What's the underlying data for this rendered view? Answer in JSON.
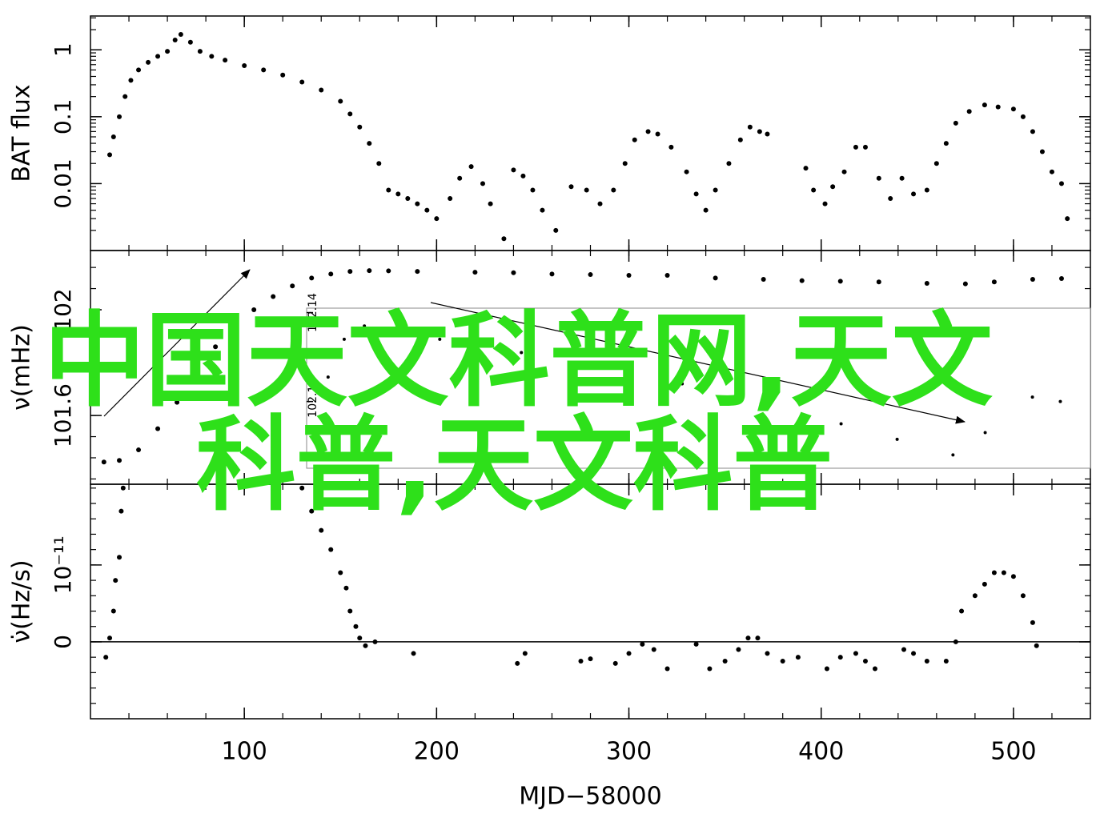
{
  "chart_data": [
    {
      "type": "scatter",
      "ylabel": "BAT flux",
      "yscale": "log",
      "ylim": [
        0.001,
        3.2
      ],
      "yticks": [
        0.01,
        0.1,
        1
      ],
      "color": "#000000",
      "x": [
        30,
        32,
        35,
        38,
        41,
        45,
        50,
        55,
        60,
        64,
        67,
        72,
        77,
        83,
        90,
        100,
        110,
        120,
        130,
        140,
        150,
        155,
        160,
        165,
        170,
        175,
        180,
        185,
        190,
        195,
        200,
        207,
        212,
        218,
        224,
        228,
        235,
        240,
        245,
        250,
        255,
        262,
        270,
        278,
        285,
        292,
        298,
        303,
        310,
        315,
        322,
        330,
        335,
        340,
        345,
        352,
        358,
        363,
        368,
        372,
        392,
        396,
        402,
        406,
        412,
        418,
        423,
        430,
        436,
        442,
        448,
        455,
        460,
        465,
        470,
        477,
        485,
        492,
        500,
        505,
        510,
        515,
        520,
        525,
        528
      ],
      "values": [
        0.027,
        0.05,
        0.1,
        0.2,
        0.35,
        0.5,
        0.65,
        0.8,
        0.95,
        1.4,
        1.7,
        1.3,
        0.95,
        0.8,
        0.7,
        0.58,
        0.5,
        0.42,
        0.33,
        0.25,
        0.17,
        0.11,
        0.07,
        0.04,
        0.02,
        0.008,
        0.007,
        0.006,
        0.005,
        0.004,
        0.003,
        0.006,
        0.012,
        0.018,
        0.01,
        0.005,
        0.0015,
        0.016,
        0.013,
        0.008,
        0.004,
        0.002,
        0.009,
        0.008,
        0.005,
        0.008,
        0.02,
        0.045,
        0.06,
        0.055,
        0.035,
        0.015,
        0.007,
        0.004,
        0.008,
        0.02,
        0.045,
        0.07,
        0.06,
        0.055,
        0.017,
        0.008,
        0.005,
        0.009,
        0.015,
        0.035,
        0.035,
        0.012,
        0.006,
        0.012,
        0.007,
        0.008,
        0.02,
        0.04,
        0.08,
        0.12,
        0.15,
        0.14,
        0.13,
        0.1,
        0.06,
        0.03,
        0.015,
        0.01,
        0.003
      ]
    },
    {
      "type": "scatter",
      "ylabel": "ν(mHz)",
      "ylim": [
        101.34,
        102.224
      ],
      "yticks": [
        101.6,
        102
      ],
      "color": "#000000",
      "x": [
        27,
        35,
        45,
        55,
        65,
        75,
        85,
        95,
        105,
        115,
        125,
        135,
        145,
        155,
        165,
        175,
        190,
        220,
        240,
        260,
        280,
        300,
        320,
        345,
        370,
        390,
        410,
        430,
        455,
        475,
        490,
        510,
        525
      ],
      "values": [
        101.424,
        101.43,
        101.47,
        101.55,
        101.65,
        101.76,
        101.86,
        101.94,
        102.0,
        102.05,
        102.09,
        102.12,
        102.135,
        102.145,
        102.148,
        102.147,
        102.145,
        102.142,
        102.14,
        102.135,
        102.133,
        102.13,
        102.13,
        102.12,
        102.115,
        102.11,
        102.108,
        102.105,
        102.1,
        102.098,
        102.105,
        102.115,
        102.118
      ]
    },
    {
      "type": "scatter",
      "ylabel": "ν̇(Hz/s)",
      "xlabel": "MJD−58000",
      "xlim": [
        20,
        540
      ],
      "xticks": [
        100,
        200,
        300,
        400,
        500
      ],
      "ylim": [
        -1e-11,
        2.05e-11
      ],
      "yticks": [
        0,
        {
          "value": 1e-11,
          "label": "10⁻¹¹"
        }
      ],
      "zero_line": true,
      "color": "#000000",
      "x": [
        28,
        30,
        32,
        33,
        35,
        36,
        37,
        130,
        135,
        140,
        145,
        150,
        153,
        155,
        158,
        160,
        163,
        168,
        188,
        242,
        246,
        275,
        280,
        293,
        300,
        307,
        313,
        320,
        335,
        342,
        350,
        357,
        362,
        367,
        372,
        380,
        388,
        403,
        410,
        418,
        423,
        428,
        443,
        448,
        455,
        465,
        470,
        473,
        480,
        485,
        490,
        495,
        500,
        505,
        510,
        512
      ],
      "values": [
        -2e-12,
        5e-13,
        4e-12,
        8e-12,
        1.1e-11,
        1.7e-11,
        2e-11,
        2e-11,
        1.7e-11,
        1.45e-11,
        1.2e-11,
        9e-12,
        7e-12,
        4e-12,
        2e-12,
        5e-13,
        -5e-13,
        0,
        -1.5e-12,
        -2.8e-12,
        -1.5e-12,
        -2.5e-12,
        -2.2e-12,
        -2.8e-12,
        -1.5e-12,
        -3e-13,
        -1e-12,
        -3.5e-12,
        -3e-13,
        -3.5e-12,
        -2.5e-12,
        -1e-12,
        5e-13,
        5e-13,
        -1.5e-12,
        -2.5e-12,
        -2e-12,
        -3.5e-12,
        -2e-12,
        -1.5e-12,
        -2.5e-12,
        -3.5e-12,
        -1e-12,
        -1.5e-12,
        -2.5e-12,
        -2.5e-12,
        0,
        4e-12,
        6e-12,
        7.5e-12,
        9e-12,
        9e-12,
        8.5e-12,
        6e-12,
        2.5e-12,
        -5e-13
      ]
    },
    {
      "type": "scatter",
      "inset": true,
      "xlim": [
        165,
        530
      ],
      "ylim": [
        102.07,
        102.142
      ],
      "yticks": [
        102.1,
        102.14
      ],
      "color": "#000000",
      "x": [
        175,
        182.5,
        191.9,
        201,
        227,
        265,
        302,
        339.9,
        376.6,
        413.9,
        440,
        466,
        481,
        503,
        516
      ],
      "values": [
        102.111,
        102.128,
        102.134,
        102.133,
        102.128,
        102.122,
        102.115,
        102.108,
        102.099,
        102.09,
        102.083,
        102.076,
        102.086,
        102.102,
        102.1
      ]
    }
  ],
  "watermark": {
    "lines": [
      "中国天文科普网,天文",
      "科普,天文科普"
    ],
    "color": "#2ee01a"
  }
}
